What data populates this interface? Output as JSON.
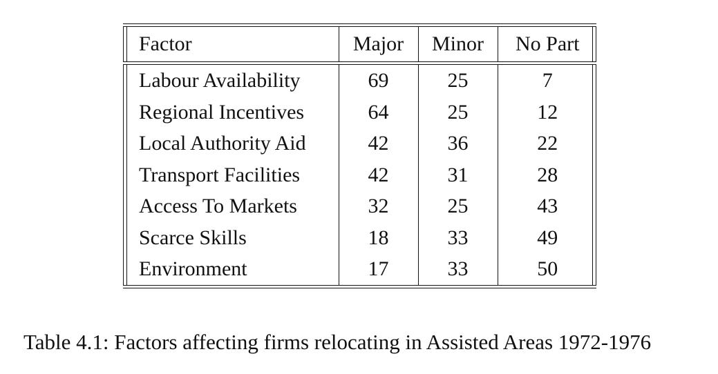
{
  "table": {
    "headers": {
      "factor": "Factor",
      "major": "Major",
      "minor": "Minor",
      "no_part": "No Part"
    },
    "rows": [
      {
        "factor": "Labour Availability",
        "major": "69",
        "minor": "25",
        "no_part": "7"
      },
      {
        "factor": "Regional Incentives",
        "major": "64",
        "minor": "25",
        "no_part": "12"
      },
      {
        "factor": "Local Authority Aid",
        "major": "42",
        "minor": "36",
        "no_part": "22"
      },
      {
        "factor": "Transport Facilities",
        "major": "42",
        "minor": "31",
        "no_part": "28"
      },
      {
        "factor": "Access To Markets",
        "major": "32",
        "minor": "25",
        "no_part": "43"
      },
      {
        "factor": "Scarce Skills",
        "major": "18",
        "minor": "33",
        "no_part": "49"
      },
      {
        "factor": "Environment",
        "major": "17",
        "minor": "33",
        "no_part": "50"
      }
    ]
  },
  "caption": "Table 4.1: Factors affecting firms relocating in Assisted Areas 1972-1976"
}
